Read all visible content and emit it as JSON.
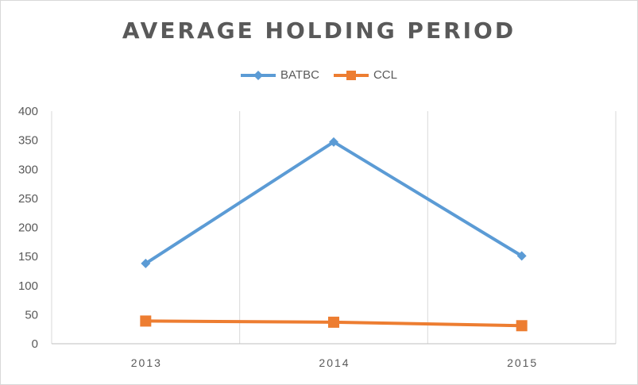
{
  "chart_data": {
    "type": "line",
    "title": "AVERAGE HOLDING PERIOD",
    "categories": [
      "2013",
      "2014",
      "2015"
    ],
    "series": [
      {
        "name": "BATBC",
        "values": [
          138,
          347,
          151
        ],
        "color": "#5b9bd5",
        "marker": "diamond"
      },
      {
        "name": "CCL",
        "values": [
          39,
          37,
          31
        ],
        "color": "#ed7d31",
        "marker": "square"
      }
    ],
    "ylim": [
      0,
      400
    ],
    "yticks": [
      "0",
      "50",
      "100",
      "150",
      "200",
      "250",
      "300",
      "350",
      "400"
    ],
    "grid": "vertical",
    "legend_position": "top"
  }
}
